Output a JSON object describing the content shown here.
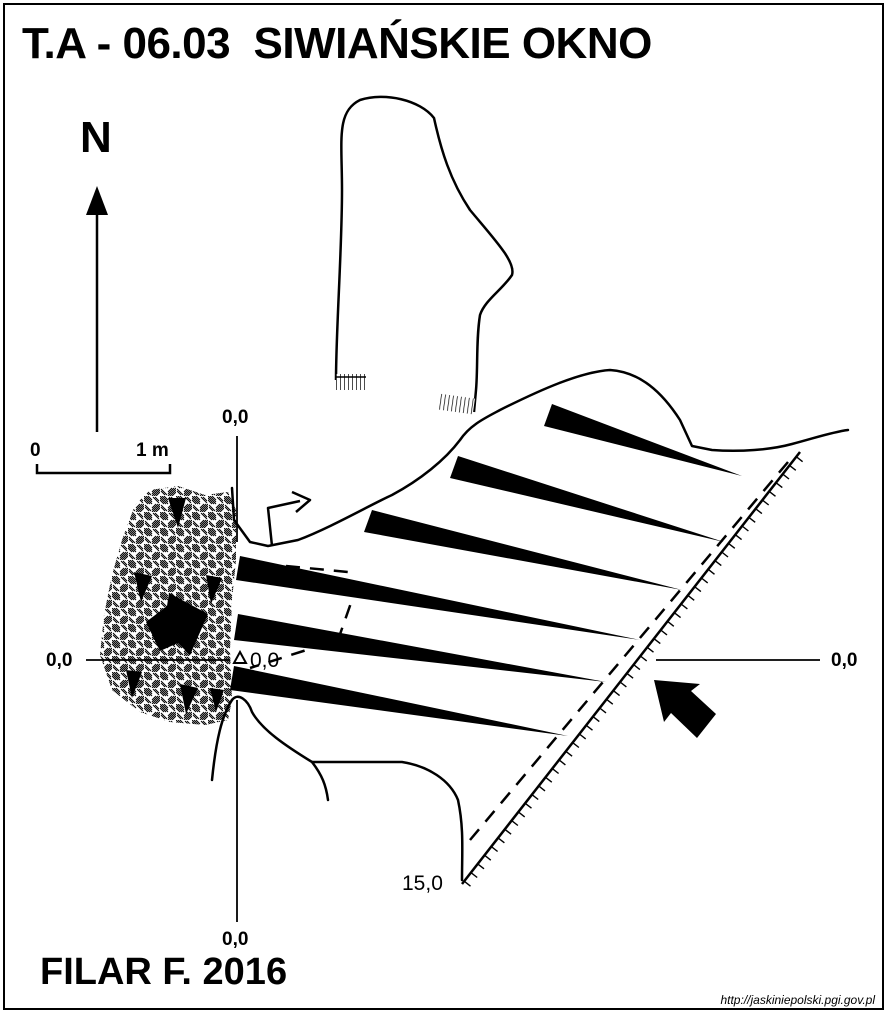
{
  "title": "T.A - 06.03  SIWIAŃSKIE OKNO",
  "author": "FILAR F. 2016",
  "source_url": "http://jaskiniepolski.pgi.gov.pl",
  "north_label": "N",
  "scale": {
    "start_label": "0",
    "end_label": "1 m"
  },
  "section_labels": {
    "top": "0,0",
    "bottom": "0,0",
    "left": "0,0",
    "right": "0,0",
    "datum_point": "0,0",
    "lower_point": "15,0"
  },
  "colors": {
    "ink": "#000000",
    "paper": "#ffffff"
  },
  "icons": [
    "north-arrow-icon",
    "entrance-arrow-icon",
    "datum-triangle-icon"
  ]
}
